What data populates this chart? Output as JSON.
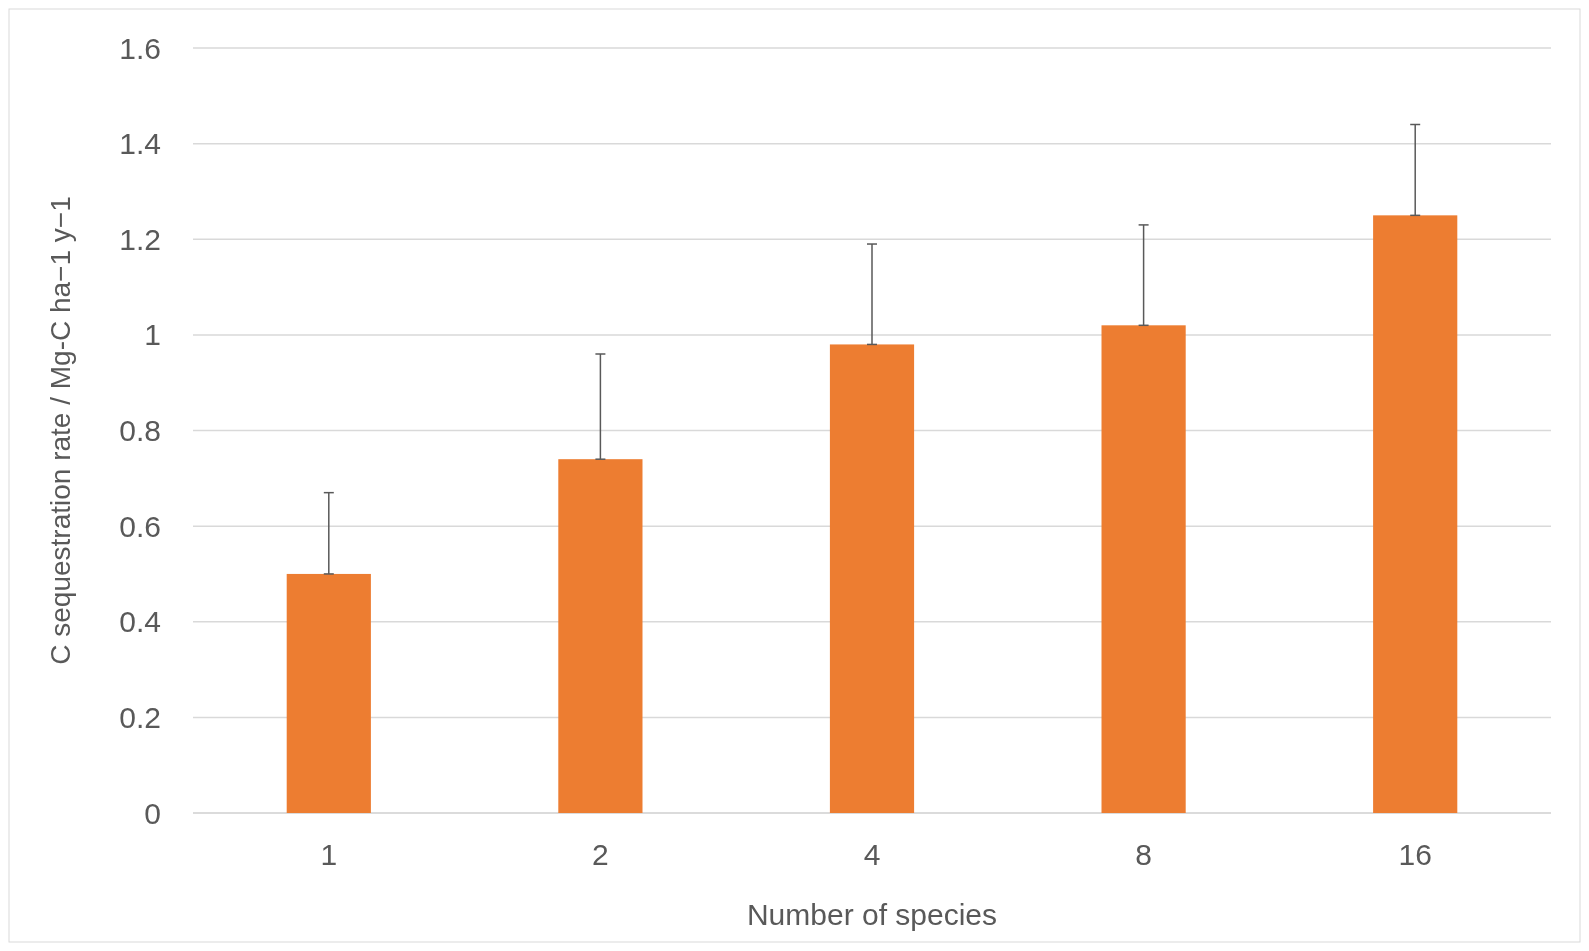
{
  "chart_data": {
    "type": "bar",
    "xlabel": "Number of species",
    "ylabel": "C sequestration rate / Mg-C ha−1 y−1",
    "categories": [
      "1",
      "2",
      "4",
      "8",
      "16"
    ],
    "values": [
      0.5,
      0.74,
      0.98,
      1.02,
      1.25
    ],
    "errors": [
      [
        0.5,
        0.67
      ],
      [
        0.74,
        0.96
      ],
      [
        0.98,
        1.19
      ],
      [
        1.02,
        1.23
      ],
      [
        1.25,
        1.44
      ]
    ],
    "color": "#ed7d31",
    "ylim": [
      0,
      1.6
    ],
    "yticks": [
      0,
      0.2,
      0.4,
      0.6,
      0.8,
      1,
      1.2,
      1.4,
      1.6
    ],
    "grid": "y"
  }
}
